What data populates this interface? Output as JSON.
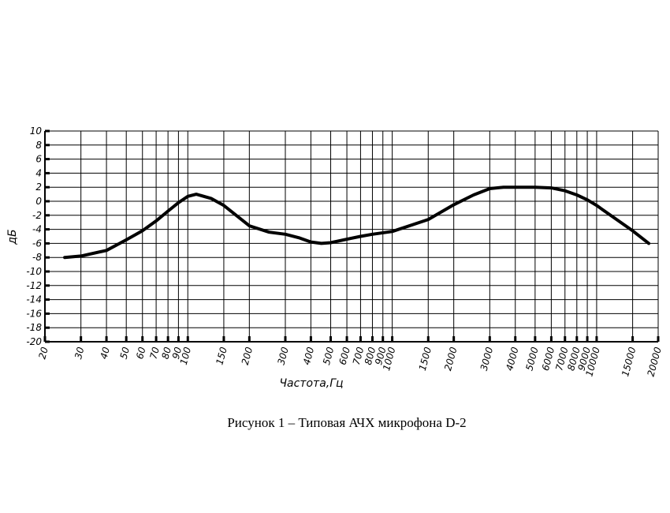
{
  "chart_data": {
    "type": "line",
    "x_label": "Частота,Гц",
    "y_label": "дБ",
    "x_scale": "log",
    "grid": true,
    "x": [
      25,
      30,
      40,
      50,
      60,
      70,
      80,
      90,
      100,
      110,
      130,
      150,
      200,
      250,
      300,
      350,
      400,
      450,
      500,
      600,
      700,
      800,
      1000,
      1500,
      2000,
      2500,
      3000,
      3500,
      5000,
      6000,
      7000,
      8000,
      9000,
      10000,
      15000,
      18000
    ],
    "series": [
      {
        "color": "#000000",
        "values": [
          -8,
          -7.8,
          -7,
          -5.5,
          -4.2,
          -2.8,
          -1.4,
          -0.2,
          0.7,
          1.0,
          0.4,
          -0.6,
          -3.5,
          -4.4,
          -4.7,
          -5.2,
          -5.8,
          -6.0,
          -5.9,
          -5.4,
          -5.0,
          -4.7,
          -4.3,
          -2.6,
          -0.5,
          0.9,
          1.8,
          2.0,
          2.0,
          1.9,
          1.5,
          0.9,
          0.2,
          -0.6,
          -4.2,
          -6
        ]
      }
    ],
    "xlim": [
      20,
      20000
    ],
    "xticks": [
      20,
      30,
      40,
      50,
      60,
      70,
      80,
      90,
      100,
      150,
      200,
      300,
      400,
      500,
      600,
      700,
      800,
      900,
      1000,
      1500,
      2000,
      3000,
      4000,
      5000,
      6000,
      7000,
      8000,
      9000,
      10000,
      15000,
      20000
    ],
    "ylim": [
      -20,
      10
    ],
    "yticks": [
      -20,
      -18,
      -16,
      -14,
      -12,
      -10,
      -8,
      -6,
      -4,
      -2,
      0,
      2,
      4,
      6,
      8,
      10
    ]
  },
  "caption": "Рисунок 1 – Типовая АЧХ микрофона D-2"
}
